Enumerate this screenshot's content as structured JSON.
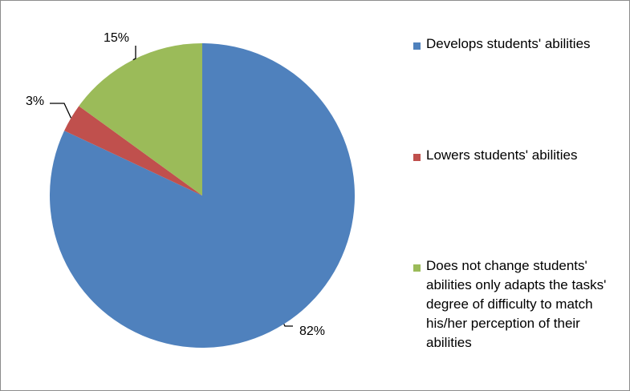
{
  "chart_data": {
    "type": "pie",
    "start_angle_deg": 0,
    "direction": "clockwise",
    "slices": [
      {
        "label": "Develops students' abilities",
        "value": 82,
        "display": "82%",
        "color": "#4F81BD"
      },
      {
        "label": "Lowers students' abilities",
        "value": 3,
        "display": "3%",
        "color": "#C0504D"
      },
      {
        "label": "Does not change students' abilities only adapts the tasks' degree of difficulty to match his/her perception of their abilities",
        "value": 15,
        "display": "15%",
        "color": "#9BBB59"
      }
    ],
    "legend_position": "right",
    "title": ""
  }
}
